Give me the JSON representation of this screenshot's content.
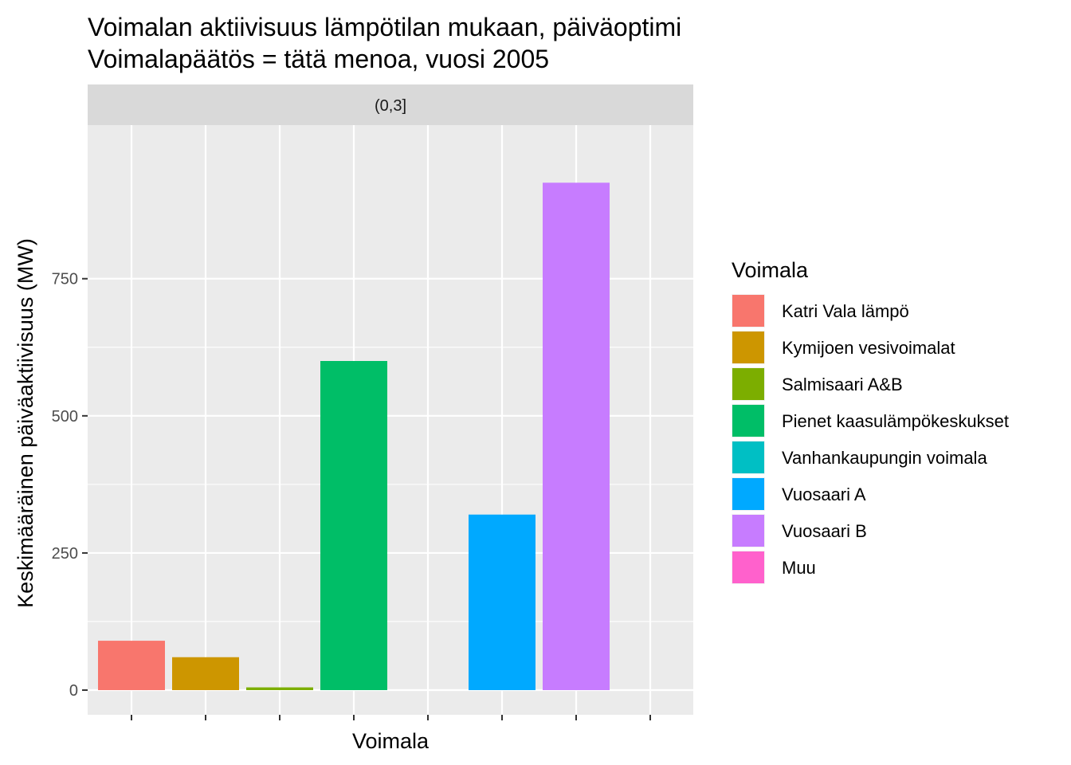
{
  "chart_data": {
    "type": "bar",
    "title": "Voimalan aktiivisuus lämpötilan mukaan, päiväoptimi",
    "subtitle": "Voimalapäätös = tätä menoa, vuosi 2005",
    "facet_label": "(0,3]",
    "xlabel": "Voimala",
    "ylabel": "Keskimääräinen päiväaktiivisuus (MW)",
    "ylim": [
      -45,
      1030
    ],
    "yticks": [
      0,
      250,
      500,
      750
    ],
    "grid": true,
    "legend_position": "right",
    "legend_title": "Voimala",
    "categories": [
      "Katri Vala lämpö",
      "Kymijoen vesivoimalat",
      "Salmisaari A&B",
      "Pienet kaasulämpökeskukset",
      "Vanhankaupungin voimala",
      "Vuosaari A",
      "Vuosaari B",
      "Muu"
    ],
    "values": [
      90,
      60,
      5,
      600,
      0,
      320,
      925,
      0
    ],
    "colors": [
      "#F8766D",
      "#CD9600",
      "#7CAE00",
      "#00BE67",
      "#00BFC4",
      "#00A9FF",
      "#C77CFF",
      "#FF61CC"
    ]
  }
}
